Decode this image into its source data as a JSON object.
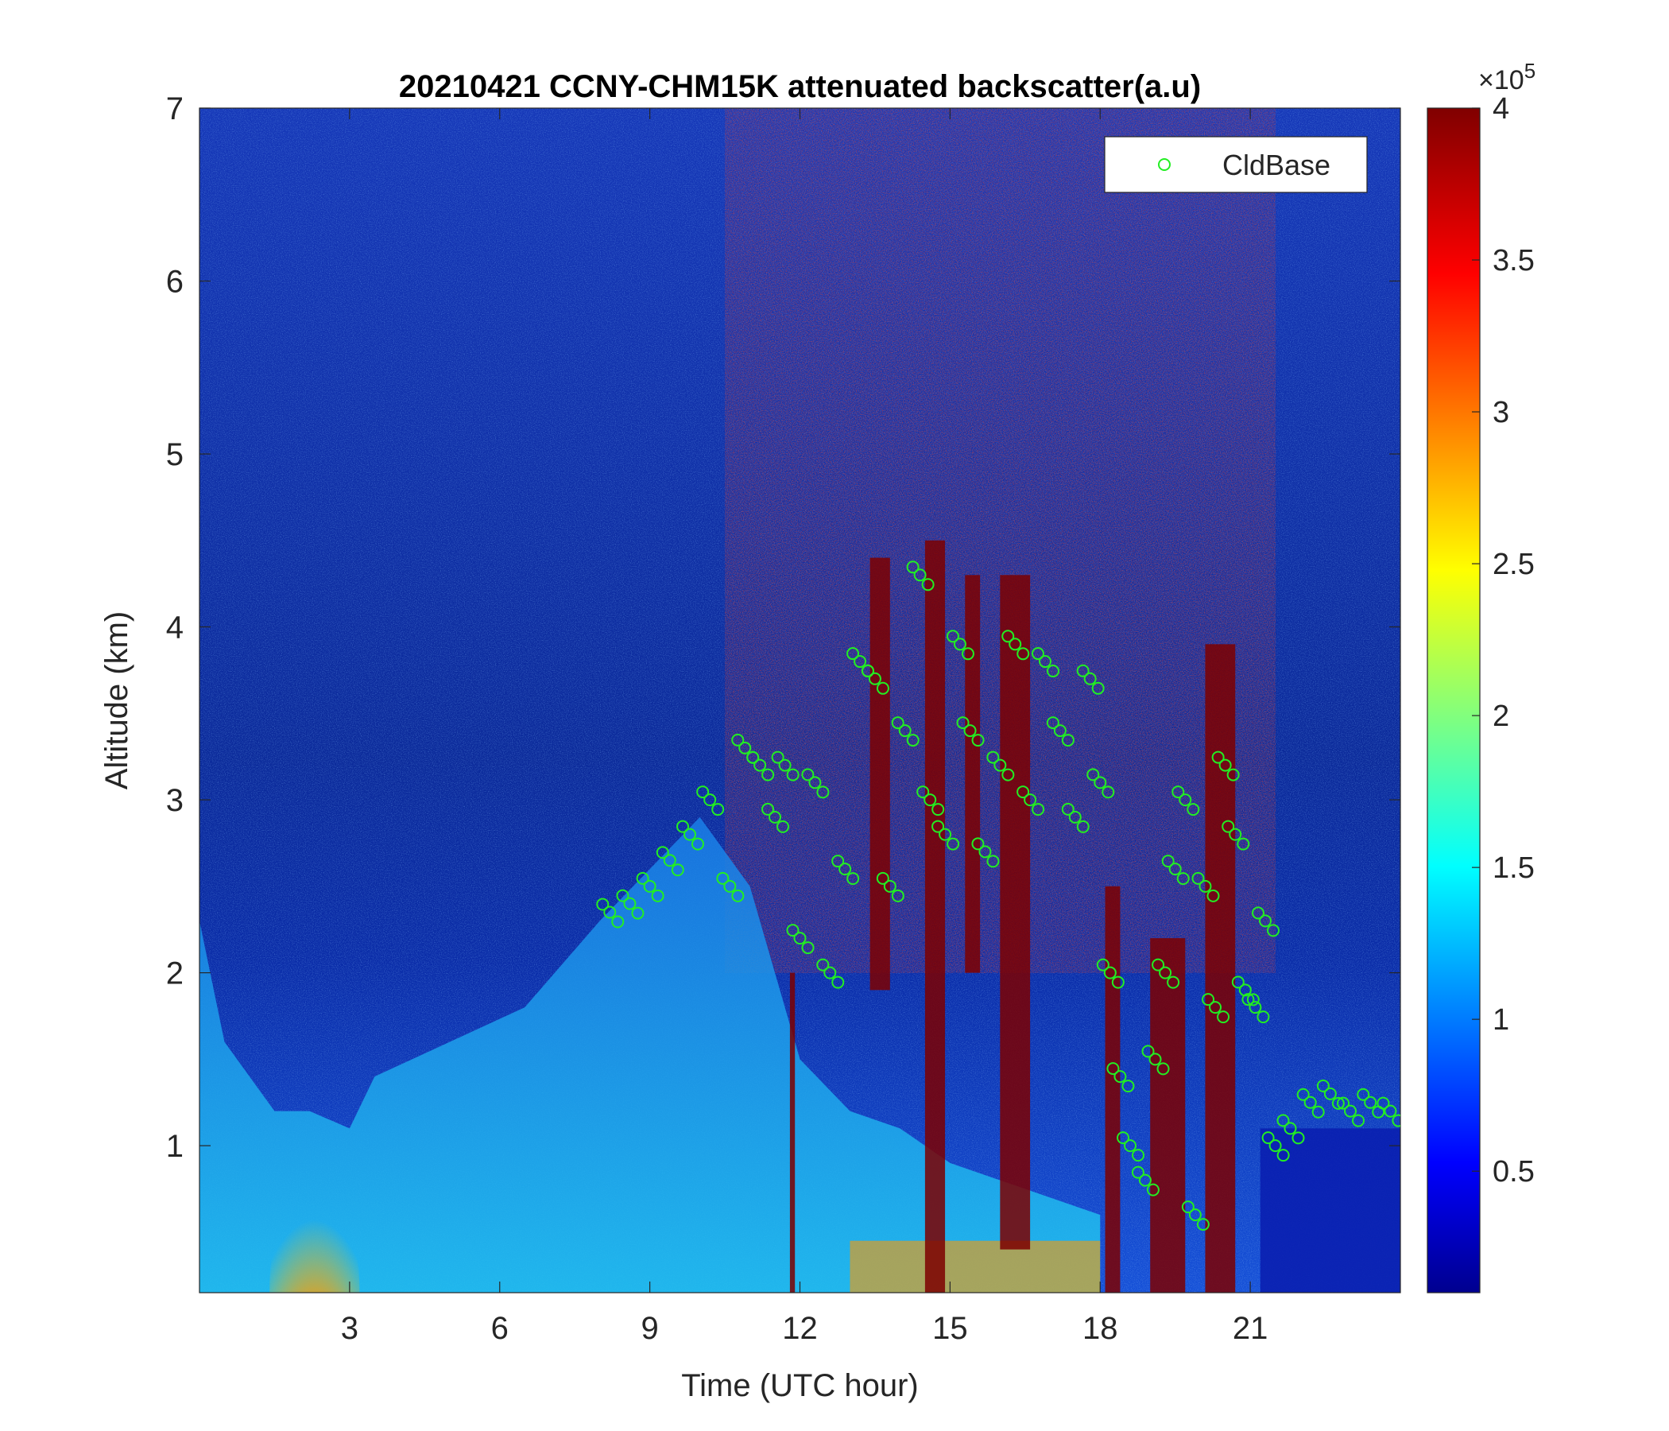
{
  "chart_data": {
    "type": "heatmap",
    "title": "20210421 CCNY-CHM15K attenuated backscatter(a.u)",
    "xlabel": "Time (UTC hour)",
    "ylabel": "Altitude (km)",
    "xlim": [
      0,
      24
    ],
    "ylim": [
      0.15,
      7
    ],
    "x_ticks": [
      3,
      6,
      9,
      12,
      15,
      18,
      21
    ],
    "x_tick_labels": [
      "3",
      "6",
      "9",
      "12",
      "15",
      "18",
      "21"
    ],
    "y_ticks": [
      1,
      2,
      3,
      4,
      5,
      6,
      7
    ],
    "y_tick_labels": [
      "1",
      "2",
      "3",
      "4",
      "5",
      "6",
      "7"
    ],
    "colorbar": {
      "colormap": "jet",
      "range": [
        0.1,
        4
      ],
      "ticks": [
        0.5,
        1,
        1.5,
        2,
        2.5,
        3,
        3.5,
        4
      ],
      "tick_labels": [
        "0.5",
        "1",
        "1.5",
        "2",
        "2.5",
        "3",
        "3.5",
        "4"
      ],
      "exponent_label": "×10",
      "exponent_power": "5"
    },
    "legend": {
      "placement": "top-right",
      "entries": [
        {
          "name": "CldBase",
          "marker": "circle",
          "color": "#22ee22"
        }
      ]
    },
    "series": [
      {
        "name": "CldBase",
        "type": "scatter",
        "color": "#22ee22",
        "x": [
          8.2,
          8.6,
          9.0,
          9.4,
          9.8,
          10.2,
          10.6,
          10.9,
          11.2,
          11.5,
          11.7,
          12.0,
          12.3,
          12.6,
          12.9,
          13.2,
          13.5,
          13.8,
          14.1,
          14.4,
          14.6,
          14.9,
          15.2,
          15.4,
          15.7,
          16.0,
          16.3,
          16.6,
          16.9,
          17.2,
          17.5,
          17.8,
          18.0,
          18.2,
          18.4,
          18.6,
          18.9,
          19.1,
          19.3,
          19.5,
          19.7,
          19.9,
          20.1,
          20.3,
          20.5,
          20.7,
          20.9,
          21.1,
          21.3,
          21.5,
          21.8,
          22.2,
          22.6,
          23.0,
          23.4,
          23.8
        ],
        "y": [
          2.35,
          2.4,
          2.5,
          2.65,
          2.8,
          3.0,
          2.5,
          3.3,
          3.2,
          2.9,
          3.2,
          2.2,
          3.1,
          2.0,
          2.6,
          3.8,
          3.7,
          2.5,
          3.4,
          4.3,
          3.0,
          2.8,
          3.9,
          3.4,
          2.7,
          3.2,
          3.9,
          3.0,
          3.8,
          3.4,
          2.9,
          3.7,
          3.1,
          2.0,
          1.4,
          1.0,
          0.8,
          1.5,
          2.0,
          2.6,
          3.0,
          0.6,
          2.5,
          1.8,
          3.2,
          2.8,
          1.9,
          1.8,
          2.3,
          1.0,
          1.1,
          1.25,
          1.3,
          1.2,
          1.25,
          1.2
        ]
      }
    ]
  }
}
